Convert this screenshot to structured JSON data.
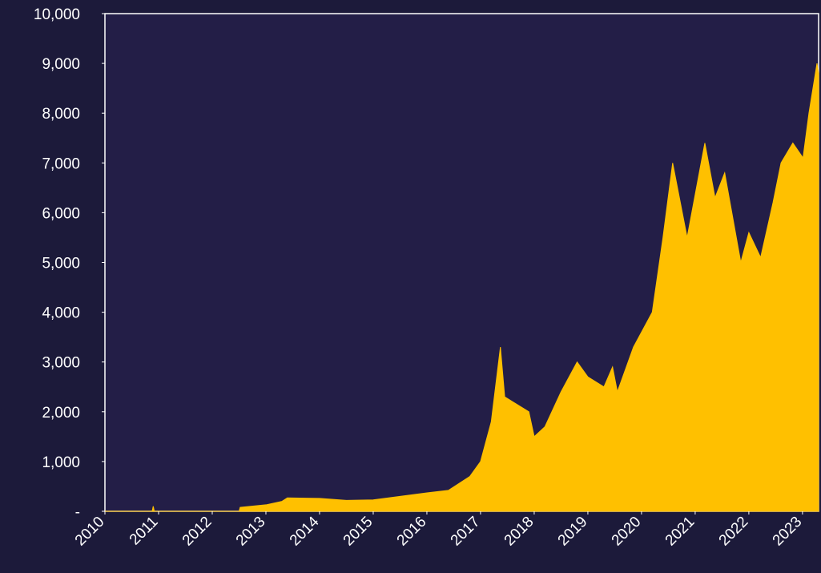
{
  "chart_data": {
    "type": "area",
    "color": "#ffc000",
    "x": [
      2010,
      2010.88,
      2010.9,
      2010.92,
      2012.5,
      2012.52,
      2013,
      2013.3,
      2013.4,
      2014,
      2014.5,
      2015,
      2015.5,
      2016,
      2016.4,
      2016.8,
      2017,
      2017.2,
      2017.37,
      2017.45,
      2017.6,
      2017.9,
      2018.0,
      2018.2,
      2018.5,
      2018.8,
      2019.0,
      2019.3,
      2019.46,
      2019.55,
      2019.85,
      2020.2,
      2020.4,
      2020.58,
      2020.85,
      2021.18,
      2021.37,
      2021.55,
      2021.85,
      2022.0,
      2022.22,
      2022.45,
      2022.6,
      2022.82,
      2023.01,
      2023.12,
      2023.27,
      2023.3
    ],
    "values": [
      0,
      0,
      100,
      0,
      0,
      80,
      130,
      200,
      270,
      260,
      220,
      230,
      300,
      370,
      420,
      700,
      1000,
      1800,
      3300,
      2300,
      2200,
      2000,
      1500,
      1700,
      2400,
      3000,
      2700,
      2500,
      2900,
      2400,
      3300,
      4000,
      5500,
      7000,
      5500,
      7400,
      6300,
      6800,
      5000,
      5600,
      5100,
      6200,
      7000,
      7400,
      7100,
      8000,
      9000,
      8800
    ],
    "xlim": [
      2010,
      2023.3
    ],
    "xticks": [
      2010,
      2011,
      2012,
      2013,
      2014,
      2015,
      2016,
      2017,
      2018,
      2019,
      2020,
      2021,
      2022,
      2023
    ],
    "ylim": [
      0,
      10000
    ],
    "yticks": [
      {
        "value": 0,
        "label": "-"
      },
      {
        "value": 1000,
        "label": "1,000"
      },
      {
        "value": 2000,
        "label": "2,000"
      },
      {
        "value": 3000,
        "label": "3,000"
      },
      {
        "value": 4000,
        "label": "4,000"
      },
      {
        "value": 5000,
        "label": "5,000"
      },
      {
        "value": 6000,
        "label": "6,000"
      },
      {
        "value": 7000,
        "label": "7,000"
      },
      {
        "value": 8000,
        "label": "8,000"
      },
      {
        "value": 9000,
        "label": "9,000"
      },
      {
        "value": 10000,
        "label": "10,000"
      }
    ]
  }
}
